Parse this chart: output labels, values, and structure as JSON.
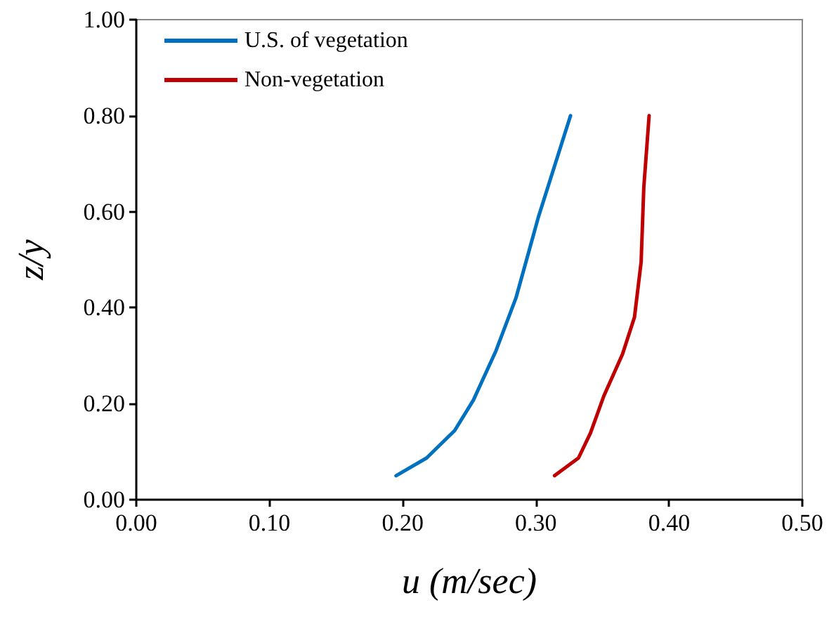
{
  "chart_data": {
    "type": "line",
    "xlabel": "u (m/sec)",
    "ylabel": "z/y",
    "xlim": [
      0,
      0.5
    ],
    "ylim": [
      0,
      1
    ],
    "xticks": [
      {
        "value": 0,
        "label": "0.00"
      },
      {
        "value": 0.1,
        "label": "0.10"
      },
      {
        "value": 0.2,
        "label": "0.20"
      },
      {
        "value": 0.3,
        "label": "0.30"
      },
      {
        "value": 0.4,
        "label": "0.40"
      },
      {
        "value": 0.5,
        "label": "0.50"
      }
    ],
    "yticks": [
      {
        "value": 0,
        "label": "0.00"
      },
      {
        "value": 0.2,
        "label": "0.20"
      },
      {
        "value": 0.4,
        "label": "0.40"
      },
      {
        "value": 0.6,
        "label": "0.60"
      },
      {
        "value": 0.8,
        "label": "0.80"
      },
      {
        "value": 1,
        "label": "1.00"
      }
    ],
    "series": [
      {
        "name": "U.S. of vegetation",
        "color": "#0070c0",
        "x": [
          0.195,
          0.218,
          0.239,
          0.253,
          0.27,
          0.285,
          0.302,
          0.326
        ],
        "values": [
          0.05,
          0.087,
          0.144,
          0.207,
          0.31,
          0.42,
          0.59,
          0.8
        ]
      },
      {
        "name": "Non-vegetation",
        "color": "#c00000",
        "x": [
          0.314,
          0.332,
          0.341,
          0.351,
          0.365,
          0.374,
          0.379,
          0.381,
          0.385
        ],
        "values": [
          0.05,
          0.087,
          0.139,
          0.216,
          0.303,
          0.38,
          0.495,
          0.65,
          0.8
        ]
      }
    ],
    "grid": false,
    "legend": "top left",
    "marker": "none",
    "line_style": "solid"
  }
}
